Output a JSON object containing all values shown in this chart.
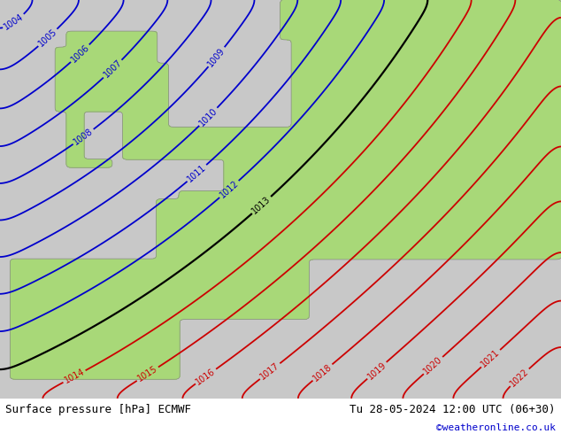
{
  "title_left": "Surface pressure [hPa] ECMWF",
  "title_right": "Tu 28-05-2024 12:00 UTC (06+30)",
  "credit": "©weatheronline.co.uk",
  "sea_color": "#c8c8c8",
  "land_color": "#a8d878",
  "blue_contour_color": "#0000cc",
  "black_contour_color": "#000000",
  "red_contour_color": "#cc0000",
  "blue_levels": [
    1004,
    1005,
    1006,
    1007,
    1008,
    1009,
    1010,
    1011,
    1012
  ],
  "black_levels": [
    1013
  ],
  "red_levels": [
    1014,
    1015,
    1016,
    1017,
    1018,
    1019,
    1020,
    1021,
    1022
  ],
  "bottom_text_color": "#000000",
  "credit_color": "#0000cc",
  "figsize": [
    6.34,
    4.9
  ],
  "dpi": 100
}
